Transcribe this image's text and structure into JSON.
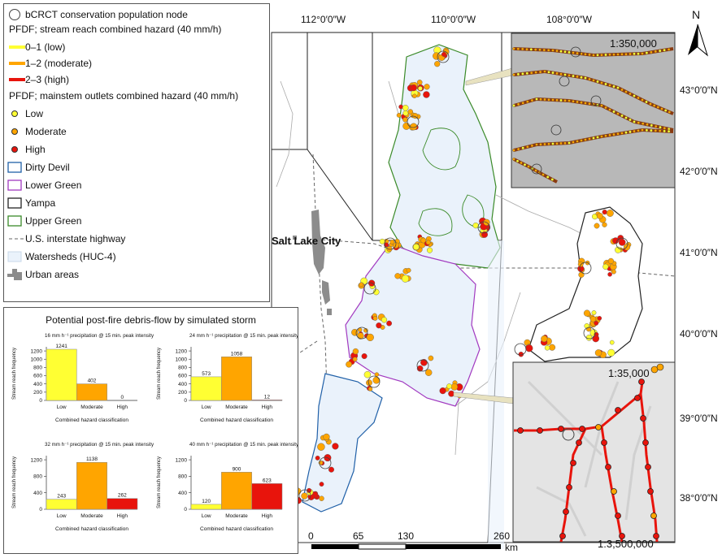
{
  "legend": {
    "node_label": "bCRCT conservation population node",
    "pfdf_reach_title": "PFDF; stream reach combined hazard (40 mm/h)",
    "reach_low": "0–1 (low)",
    "reach_moderate": "1–2 (moderate)",
    "reach_high": "2–3 (high)",
    "pfdf_outlet_title": "PFDF; mainstem outlets combined hazard (40 mm/h)",
    "outlet_low": "Low",
    "outlet_moderate": "Moderate",
    "outlet_high": "High",
    "dirty_devil": "Dirty Devil",
    "lower_green": "Lower Green",
    "yampa": "Yampa",
    "upper_green": "Upper Green",
    "highway": "U.S. interstate highway",
    "watersheds": "Watersheds (HUC-4)",
    "urban": "Urban areas",
    "colors": {
      "low": "#ffff33",
      "moderate": "#ffa500",
      "high": "#e8140c",
      "dirty_devil": "#2060a8",
      "lower_green": "#a23ac0",
      "yampa": "#222222",
      "upper_green": "#3a8a28",
      "watershed_fill": "#eaf2fb"
    }
  },
  "map": {
    "city": "Salt Lake City",
    "lon_labels": [
      "112°0′0″W",
      "110°0′0″W",
      "108°0′0″W"
    ],
    "lat_labels": [
      "43°0′0″N",
      "42°0′0″N",
      "41°0′0″N",
      "40°0′0″N",
      "39°0′0″N",
      "38°0′0″N"
    ],
    "north": "N",
    "inset_top_scale": "1:350,000",
    "inset_bottom_scale": "1:35,000",
    "scalebar_ticks": [
      "0",
      "65",
      "130",
      "260"
    ],
    "scalebar_unit": "km",
    "scale": "1:3,500,000"
  },
  "charts_panel": {
    "title": "Potential post-fire debris-flow by simulated storm",
    "categories": [
      "Low",
      "Moderate",
      "High"
    ],
    "ylabel": "Stream reach frequency",
    "xlabel": "Combined hazard classification"
  },
  "chart_data": [
    {
      "type": "bar",
      "title": "16 mm h⁻¹ precipitation @ 15 min. peak intensity",
      "categories": [
        "Low",
        "Moderate",
        "High"
      ],
      "values": [
        1241,
        402,
        0
      ],
      "ylim": [
        0,
        1300
      ],
      "yticks": [
        0,
        200,
        400,
        600,
        800,
        1000,
        1200
      ],
      "xlabel": "Combined hazard classification",
      "ylabel": "Stream reach frequency"
    },
    {
      "type": "bar",
      "title": "24 mm h⁻¹ precipitation @ 15 min. peak intensity",
      "categories": [
        "Low",
        "Moderate",
        "High"
      ],
      "values": [
        573,
        1058,
        12
      ],
      "ylim": [
        0,
        1300
      ],
      "yticks": [
        0,
        200,
        400,
        600,
        800,
        1000,
        1200
      ],
      "xlabel": "Combined hazard classification",
      "ylabel": "Stream reach frequency"
    },
    {
      "type": "bar",
      "title": "32 mm h⁻¹ precipitation @ 15 min. peak intensity",
      "categories": [
        "Low",
        "Moderate",
        "High"
      ],
      "values": [
        243,
        1138,
        262
      ],
      "ylim": [
        0,
        1300
      ],
      "yticks": [
        0,
        400,
        800,
        1200
      ],
      "xlabel": "Combined hazard classification",
      "ylabel": "Stream reach frequency"
    },
    {
      "type": "bar",
      "title": "40 mm h⁻¹ precipitation @ 15 min. peak intensity",
      "categories": [
        "Low",
        "Moderate",
        "High"
      ],
      "values": [
        120,
        900,
        623
      ],
      "ylim": [
        0,
        1300
      ],
      "yticks": [
        0,
        400,
        800,
        1200
      ],
      "xlabel": "Combined hazard classification",
      "ylabel": "Stream reach frequency"
    }
  ]
}
